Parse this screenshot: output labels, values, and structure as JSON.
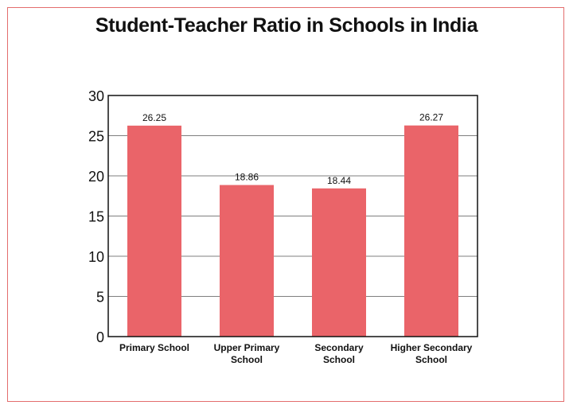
{
  "chart_data": {
    "type": "bar",
    "title": "Student-Teacher Ratio in Schools in India",
    "categories": [
      [
        "Primary School"
      ],
      [
        "Upper Primary",
        "School"
      ],
      [
        "Secondary",
        "School"
      ],
      [
        "Higher Secondary",
        "School"
      ]
    ],
    "values": [
      26.25,
      18.86,
      18.44,
      26.27
    ],
    "data_labels": [
      "26.25",
      "18.86",
      "18.44",
      "26.27"
    ],
    "ylim": [
      0,
      30
    ],
    "yticks": [
      0,
      5,
      10,
      15,
      20,
      25,
      30
    ],
    "grid": true,
    "bar_color": "#ea6469",
    "frame_color": "#e36d6d"
  }
}
